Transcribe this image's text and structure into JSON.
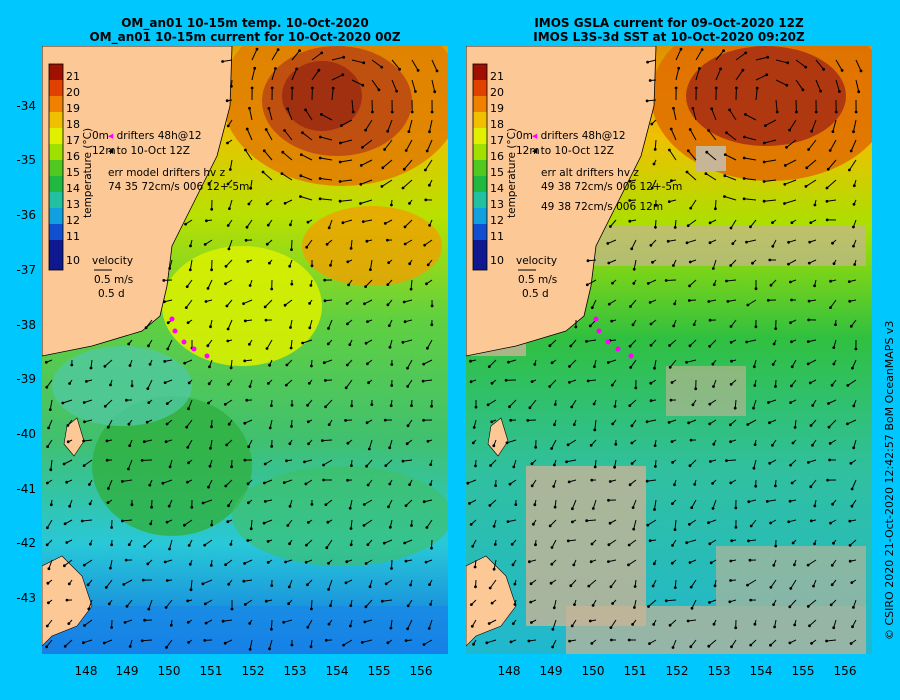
{
  "left_title": [
    "OM_an01 10-15m temp. 10-Oct-2020",
    "OM_an01 10-15m current for 10-Oct-2020 00Z"
  ],
  "right_title": [
    "IMOS GSLA current for 09-Oct-2020 12Z",
    "IMOS L3S-3d SST at 10-Oct-2020 09:20Z"
  ],
  "lat_labels": [
    "-34",
    "-35",
    "-36",
    "-37",
    "-38",
    "-39",
    "-40",
    "-41",
    "-42",
    "-43"
  ],
  "lon_labels": [
    "148",
    "149",
    "150",
    "151",
    "152",
    "153",
    "154",
    "155",
    "156"
  ],
  "colorbar": {
    "title": "temperature (°C)",
    "ticks": [
      "21",
      "20",
      "19",
      "18",
      "17",
      "16",
      "15",
      "14",
      "13",
      "12",
      "11",
      "10"
    ]
  },
  "left_notes": {
    "drifters": "drifters 48h@12",
    "until": "to 10-Oct 12Z",
    "err": "err model drifters hv z",
    "stats": "74 35 72cm/s 006 12+-5m",
    "tag1": "0m",
    "tag2": "12m"
  },
  "right_notes": {
    "drifters": "drifters 48h@12",
    "until": "to 10-Oct 12Z",
    "err": "err alt drifters hv z",
    "stats1": "49 38 72cm/s 006 12+-5m",
    "stats2": "49 38 72cm/s 006 12m",
    "tag1": "0m",
    "tag2": "12m"
  },
  "velocity": {
    "label": "velocity",
    "speed": "0.5 m/s",
    "time": "0.5 d"
  },
  "credit": "© CSIRO 2020   21-Oct-2020 12:42:57 BoM OceanMAPS v3",
  "colors": {
    "background": "#00c8ff",
    "land": "#fcc896",
    "nodata": "#c8b496",
    "drifter": "#ff00ff"
  }
}
